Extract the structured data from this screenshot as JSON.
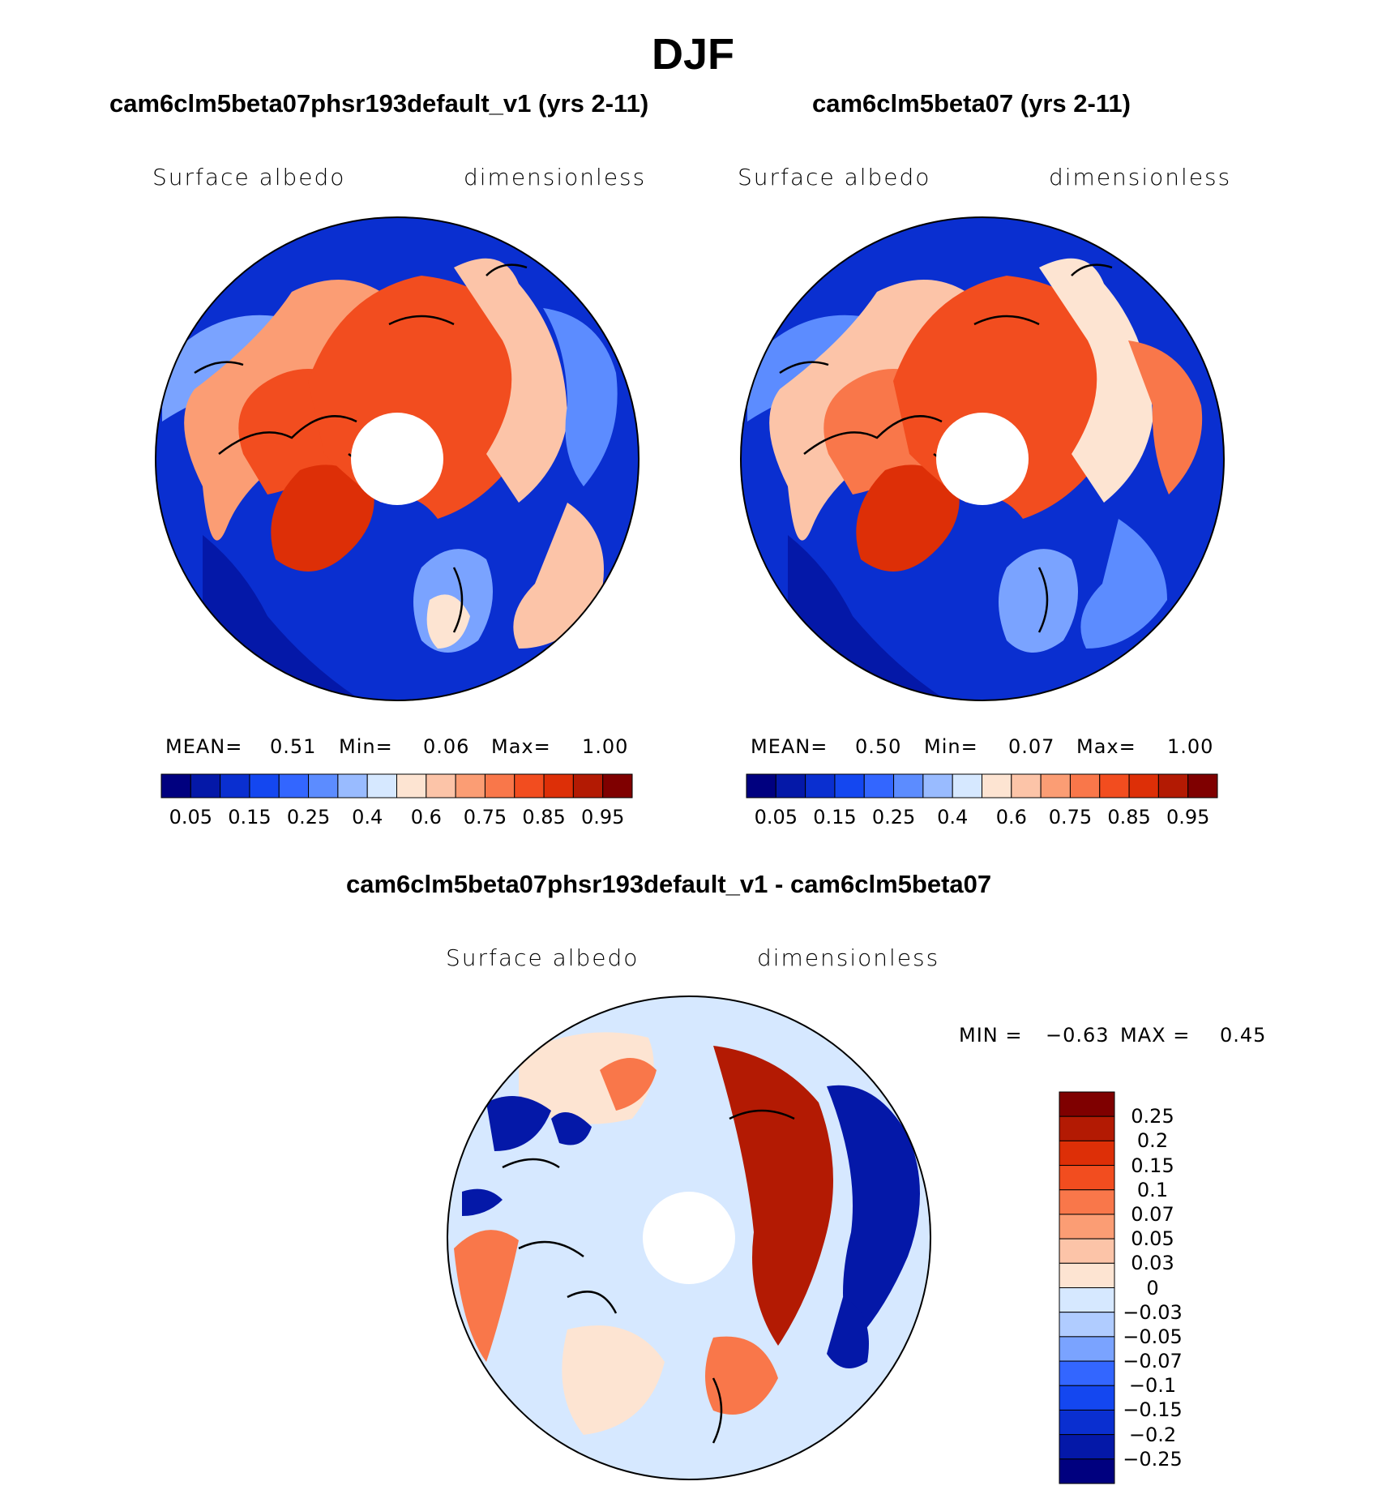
{
  "figure": {
    "title": "DJF"
  },
  "panels": [
    {
      "title": "cam6clm5beta07phsr193default_v1 (yrs 2-11)",
      "variable": "Surface albedo",
      "units": "dimensionless",
      "stats": {
        "mean_label": "MEAN=",
        "mean": "0.51",
        "min_label": "Min=",
        "min": "0.06",
        "max_label": "Max=",
        "max": "1.00"
      }
    },
    {
      "title": "cam6clm5beta07 (yrs 2-11)",
      "variable": "Surface albedo",
      "units": "dimensionless",
      "stats": {
        "mean_label": "MEAN=",
        "mean": "0.50",
        "min_label": "Min=",
        "min": "0.07",
        "max_label": "Max=",
        "max": "1.00"
      }
    },
    {
      "title": "cam6clm5beta07phsr193default_v1 - cam6clm5beta07",
      "variable": "Surface albedo",
      "units": "dimensionless",
      "stats": {
        "min_label": "MIN =",
        "min": "−0.63",
        "max_label": "MAX =",
        "max": "0.45"
      }
    }
  ],
  "colorbars": {
    "albedo": {
      "colors": [
        "#00007f",
        "#0418a8",
        "#0a2fd0",
        "#1447f0",
        "#3366ff",
        "#5c8cff",
        "#99bbff",
        "#d6e8ff",
        "#fde4d2",
        "#fcc4a8",
        "#fb9d74",
        "#f9774a",
        "#f24d1f",
        "#dd2f07",
        "#b31a03",
        "#7f0000"
      ],
      "tick_labels": [
        "0.05",
        "0.15",
        "0.25",
        "0.4",
        "0.6",
        "0.75",
        "0.85",
        "0.95"
      ]
    },
    "difference": {
      "colors": [
        "#7f0000",
        "#b31a03",
        "#dd2f07",
        "#f24d1f",
        "#f9774a",
        "#fb9d74",
        "#fcc4a8",
        "#fde4d2",
        "#d6e8ff",
        "#b0ccff",
        "#7aa3ff",
        "#3366ff",
        "#1447f0",
        "#0a2fd0",
        "#0418a8",
        "#00007f"
      ],
      "tick_labels": [
        "0.25",
        "0.2",
        "0.15",
        "0.1",
        "0.07",
        "0.05",
        "0.03",
        "0",
        "−0.03",
        "−0.05",
        "−0.07",
        "−0.1",
        "−0.15",
        "−0.2",
        "−0.25"
      ]
    }
  },
  "chart_data": [
    {
      "type": "heatmap",
      "projection": "north polar stereographic",
      "title": "cam6clm5beta07phsr193default_v1 (yrs 2-11)",
      "variable": "Surface albedo",
      "units": "dimensionless",
      "mean": 0.51,
      "min": 0.06,
      "max": 1.0,
      "levels": [
        0.05,
        0.1,
        0.15,
        0.2,
        0.25,
        0.3,
        0.4,
        0.5,
        0.6,
        0.7,
        0.75,
        0.8,
        0.85,
        0.9,
        0.95
      ]
    },
    {
      "type": "heatmap",
      "projection": "north polar stereographic",
      "title": "cam6clm5beta07 (yrs 2-11)",
      "variable": "Surface albedo",
      "units": "dimensionless",
      "mean": 0.5,
      "min": 0.07,
      "max": 1.0,
      "levels": [
        0.05,
        0.1,
        0.15,
        0.2,
        0.25,
        0.3,
        0.4,
        0.5,
        0.6,
        0.7,
        0.75,
        0.8,
        0.85,
        0.9,
        0.95
      ]
    },
    {
      "type": "heatmap",
      "projection": "north polar stereographic",
      "title": "cam6clm5beta07phsr193default_v1 - cam6clm5beta07",
      "variable": "Surface albedo",
      "units": "dimensionless",
      "min": -0.63,
      "max": 0.45,
      "levels": [
        -0.25,
        -0.2,
        -0.15,
        -0.1,
        -0.07,
        -0.05,
        -0.03,
        0,
        0.03,
        0.05,
        0.07,
        0.1,
        0.15,
        0.2,
        0.25
      ]
    }
  ]
}
